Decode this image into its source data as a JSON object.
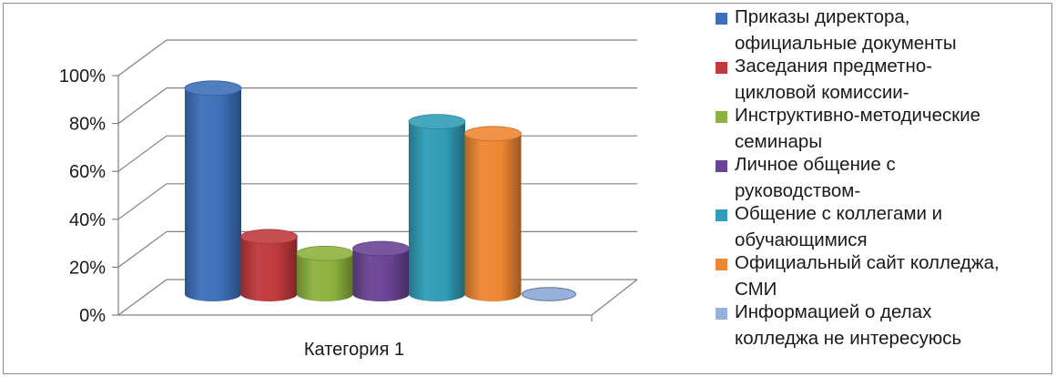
{
  "chart_data": {
    "type": "bar",
    "categories": [
      "Категория 1"
    ],
    "series": [
      {
        "name": "Приказы директора, официальные документы",
        "values": [
          86
        ],
        "color": "#3d70ba"
      },
      {
        "name": "Заседания предметно-цикловой комиссии-",
        "values": [
          24
        ],
        "color": "#c0393c"
      },
      {
        "name": "Инструктивно-методические семинары",
        "values": [
          17
        ],
        "color": "#8db23f"
      },
      {
        "name": "Личное общение с руководством-",
        "values": [
          19
        ],
        "color": "#6a4494"
      },
      {
        "name": "Общение с коллегами и обучающимися",
        "values": [
          72
        ],
        "color": "#2f9db5"
      },
      {
        "name": "Официальный сайт колледжа, СМИ",
        "values": [
          67
        ],
        "color": "#ee8733"
      },
      {
        "name": "Информацией о делах колледжа не интересуюсь",
        "values": [
          0
        ],
        "color": "#96b1db"
      }
    ],
    "yticks": [
      "0%",
      "20%",
      "40%",
      "60%",
      "80%",
      "100%"
    ],
    "ylim": [
      0,
      100
    ],
    "grid": true,
    "legend_position": "right",
    "style": "3d-cylinder"
  },
  "legend": {
    "items": [
      {
        "lines": [
          "Приказы директора,",
          "официальные документы"
        ]
      },
      {
        "lines": [
          "Заседания предметно-",
          "цикловой комиссии-"
        ]
      },
      {
        "lines": [
          "Инструктивно-методические",
          "семинары"
        ]
      },
      {
        "lines": [
          "Личное общение с",
          "руководством-"
        ]
      },
      {
        "lines": [
          "Общение с коллегами и",
          "обучающимися"
        ]
      },
      {
        "lines": [
          "Официальный сайт колледжа,",
          "СМИ"
        ]
      },
      {
        "lines": [
          "Информацией о делах",
          "колледжа не интересуюсь"
        ]
      }
    ]
  }
}
